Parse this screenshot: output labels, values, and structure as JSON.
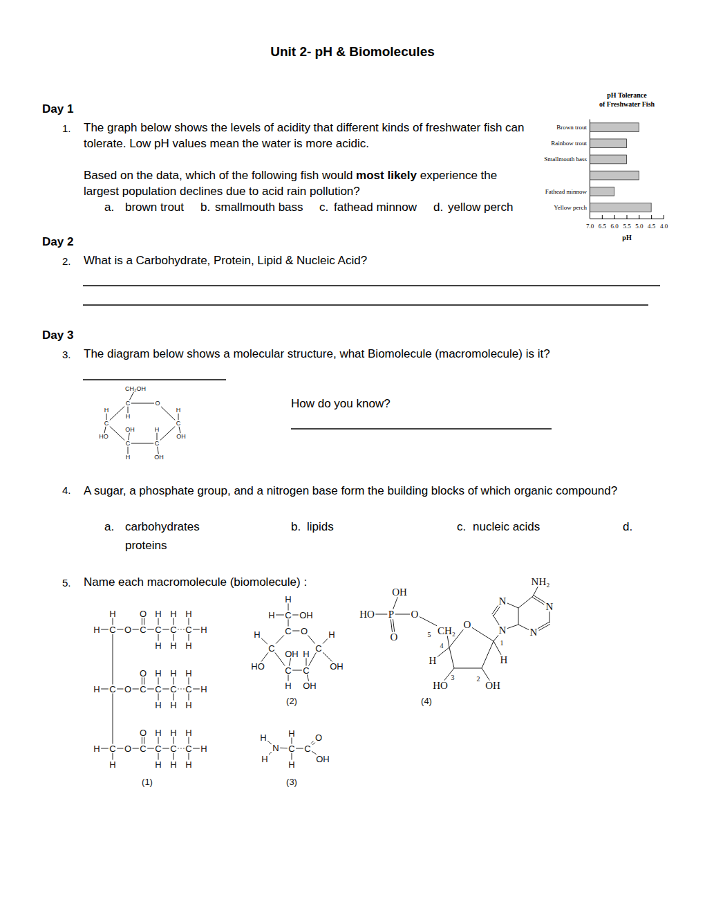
{
  "header": {
    "title": "Unit 2- pH & Biomolecules"
  },
  "days": [
    "Day 1",
    "Day 2",
    "Day 3"
  ],
  "questions": [
    {
      "number": "1.",
      "text": "The graph below shows the levels of acidity that different kinds of freshwater fish can tolerate. Low pH values mean the water is more acidic.",
      "prompt": [
        "Based on the data, which of the following fish would ",
        "most likely",
        " experience the largest population declines due to acid rain pollution?"
      ],
      "options": [
        {
          "letter": "a.",
          "text": "brown trout"
        },
        {
          "letter": "b.",
          "text": "smallmouth bass"
        },
        {
          "letter": "c.",
          "text": "fathead minnow"
        },
        {
          "letter": "d.",
          "text": "yellow perch"
        }
      ]
    },
    {
      "number": "2.",
      "text": "What is a Carbohydrate, Protein, Lipid & Nucleic Acid?"
    },
    {
      "number": "3.",
      "text": "The diagram below shows a molecular structure, what Biomolecule (macromolecule) is it?",
      "followup": "How do you know?",
      "molecule": {
        "atoms": [
          "CH₂OH",
          "C",
          "O",
          "H",
          "H",
          "H",
          "C",
          "C",
          "OH",
          "H",
          "HO",
          "OH",
          "C",
          "C",
          "H",
          "OH"
        ]
      }
    },
    {
      "number": "4.",
      "text": "A sugar, a phosphate group, and a nitrogen base form the building blocks of which organic compound?",
      "options": [
        {
          "letter": "a.",
          "text": "carbohydrates"
        },
        {
          "letter": "b.",
          "text": "lipids"
        },
        {
          "letter": "c.",
          "text": "nucleic acids"
        },
        {
          "letter": "d.",
          "text": "proteins"
        }
      ]
    },
    {
      "number": "5.",
      "text": "Name each macromolecule (biomolecule) :",
      "molecules": [
        {
          "label": "(1)",
          "chains": [
            {
              "above": [
                null,
                "H",
                null,
                "O",
                "H",
                "H",
                "H",
                null
              ],
              "main": [
                "H",
                "C",
                "O",
                "C",
                "C",
                "C",
                "C",
                "H"
              ],
              "below": [
                null,
                null,
                null,
                null,
                "H",
                "H",
                "H",
                null
              ]
            },
            {
              "above": [
                null,
                null,
                null,
                "O",
                "H",
                "H",
                "H",
                null
              ],
              "main": [
                "H",
                "C",
                "O",
                "C",
                "C",
                "C",
                "C",
                "H"
              ],
              "below": [
                null,
                null,
                null,
                null,
                "H",
                "H",
                "H",
                null
              ]
            },
            {
              "above": [
                null,
                null,
                null,
                "O",
                "H",
                "H",
                "H",
                null
              ],
              "main": [
                "H",
                "C",
                "O",
                "C",
                "C",
                "C",
                "C",
                "H"
              ],
              "below": [
                null,
                "H",
                null,
                null,
                "H",
                "H",
                "H",
                null
              ]
            }
          ]
        },
        {
          "label": "(2)",
          "atoms": [
            "H",
            "H",
            "C",
            "OH",
            "C",
            "O",
            "H",
            "H",
            "C",
            "C",
            "OH",
            "H",
            "HO",
            "OH",
            "C",
            "C",
            "H",
            "OH"
          ]
        },
        {
          "label": "(3)",
          "atoms": [
            "H",
            "N",
            "H",
            "H",
            "C",
            "H",
            "C",
            "O",
            "OH"
          ]
        },
        {
          "label": "(4)",
          "atoms": [
            "OH",
            "HO",
            "P",
            "O",
            "O",
            "5",
            "CH₂",
            "O",
            "N",
            "1",
            "4",
            "H",
            "H",
            "3",
            "HO",
            "2",
            "OH",
            "NH₂",
            "N",
            "N",
            "N"
          ]
        }
      ]
    }
  ],
  "chart_data": {
    "type": "bar",
    "orientation": "horizontal",
    "title": [
      "pH Tolerance",
      "of Freshwater Fish"
    ],
    "x_label": "pH",
    "categories": [
      "Brown trout",
      "Rainbow trout",
      "Smallmouth bass",
      null,
      "Fathead minnow",
      "Yellow perch"
    ],
    "values": [
      5.0,
      5.5,
      5.5,
      5.0,
      6.0,
      4.5
    ],
    "color": "#c4c4c4",
    "xlim": [
      7,
      4
    ],
    "xticks": [
      {
        "value": 7,
        "label": "7.0"
      },
      6.5,
      {
        "value": 6,
        "label": "6.0"
      },
      5.5,
      {
        "value": 5,
        "label": "5.0"
      },
      4.5,
      {
        "value": 4,
        "label": "4.0"
      }
    ]
  }
}
